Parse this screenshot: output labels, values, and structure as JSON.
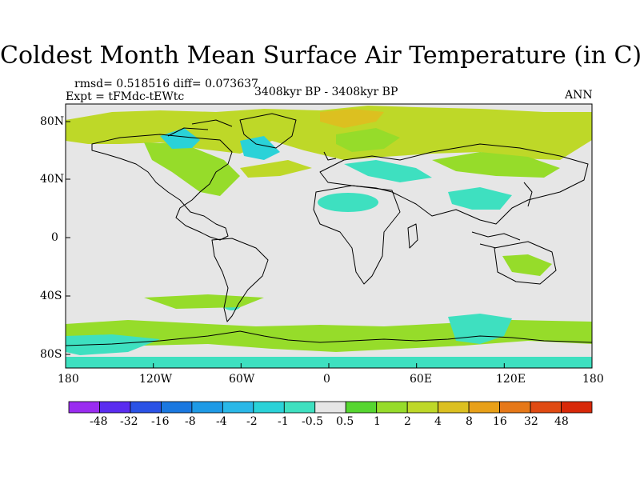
{
  "title": "Coldest Month Mean Surface Air Temperature (in C)",
  "stats": "rmsd= 0.518516 diff= 0.073637",
  "experiment": "Expt = tFMdc-tEWtc",
  "period": "3408kyr BP - 3408kyr BP",
  "season": "ANN",
  "axes": {
    "lon_labels": [
      "180",
      "120W",
      "60W",
      "0",
      "60E",
      "120E",
      "180"
    ],
    "lat_labels": [
      "80N",
      "40N",
      "0",
      "40S",
      "80S"
    ]
  },
  "colorbar": {
    "labels": [
      "-48",
      "-32",
      "-16",
      "-8",
      "-4",
      "-2",
      "-1",
      "-0.5",
      "0.5",
      "1",
      "2",
      "4",
      "8",
      "16",
      "32",
      "48"
    ],
    "colors": [
      "#9a2cf0",
      "#5a2cf0",
      "#2a52e6",
      "#1a78e0",
      "#1e9ae6",
      "#2ab8e8",
      "#2ad2d8",
      "#3ee0c0",
      "#e6e6e6",
      "#56d630",
      "#96dc2a",
      "#bed828",
      "#dcc020",
      "#e8a018",
      "#e67818",
      "#e04a12",
      "#d82808"
    ]
  },
  "colors": {
    "land_ocean_neutral": "#e6e6e6",
    "coast": "#000000"
  }
}
